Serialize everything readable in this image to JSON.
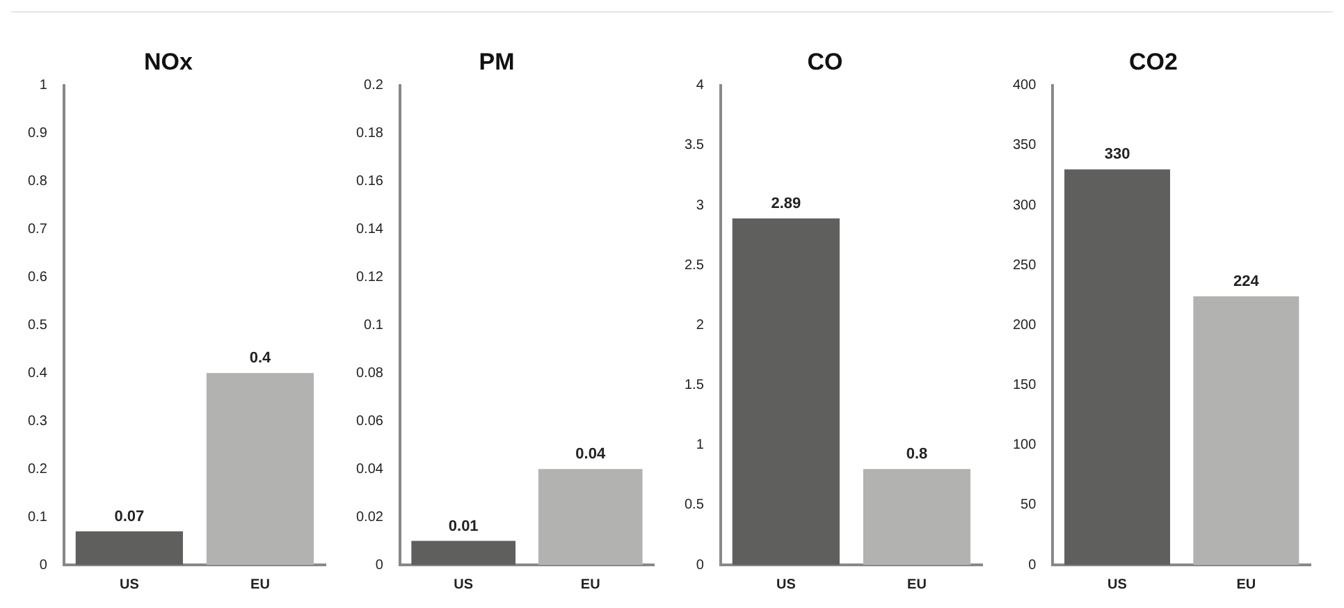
{
  "chart_data": [
    {
      "type": "bar",
      "title": "NOx",
      "categories": [
        "US",
        "EU"
      ],
      "values": [
        0.07,
        0.4
      ],
      "colors": [
        "#5f5f5e",
        "#b2b2b0"
      ],
      "ylim": [
        0,
        1
      ],
      "yticks": [
        0,
        0.1,
        0.2,
        0.3,
        0.4,
        0.5,
        0.6,
        0.7,
        0.8,
        0.9,
        1
      ],
      "grid": false,
      "data_labels": true
    },
    {
      "type": "bar",
      "title": "PM",
      "categories": [
        "US",
        "EU"
      ],
      "values": [
        0.01,
        0.04
      ],
      "colors": [
        "#5f5f5e",
        "#b2b2b0"
      ],
      "ylim": [
        0,
        0.2
      ],
      "yticks": [
        0,
        0.02,
        0.04,
        0.06,
        0.08,
        0.1,
        0.12,
        0.14,
        0.16,
        0.18,
        0.2
      ],
      "grid": false,
      "data_labels": true
    },
    {
      "type": "bar",
      "title": "CO",
      "categories": [
        "US",
        "EU"
      ],
      "values": [
        2.89,
        0.8
      ],
      "colors": [
        "#5f5f5e",
        "#b2b2b0"
      ],
      "ylim": [
        0,
        4
      ],
      "yticks": [
        0,
        0.5,
        1,
        1.5,
        2,
        2.5,
        3,
        3.5,
        4
      ],
      "grid": false,
      "data_labels": true
    },
    {
      "type": "bar",
      "title": "CO2",
      "categories": [
        "US",
        "EU"
      ],
      "values": [
        330,
        224
      ],
      "colors": [
        "#5f5f5e",
        "#b2b2b0"
      ],
      "ylim": [
        0,
        400
      ],
      "yticks": [
        0,
        50,
        100,
        150,
        200,
        250,
        300,
        350,
        400
      ],
      "grid": false,
      "data_labels": true
    }
  ]
}
